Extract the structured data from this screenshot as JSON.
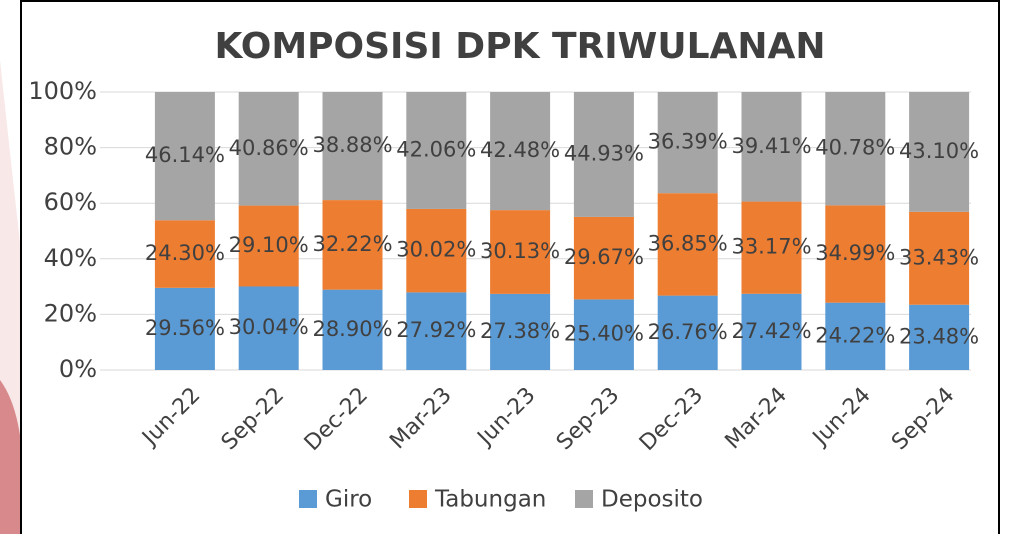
{
  "chart_data": {
    "type": "stacked_bar",
    "title": "KOMPOSISI DPK TRIWULANAN",
    "categories": [
      "Jun-22",
      "Sep-22",
      "Dec-22",
      "Mar-23",
      "Jun-23",
      "Sep-23",
      "Dec-23",
      "Mar-24",
      "Jun-24",
      "Sep-24"
    ],
    "series": [
      {
        "name": "Giro",
        "color": "#5b9bd5",
        "values": [
          29.56,
          30.04,
          28.9,
          27.92,
          27.38,
          25.4,
          26.76,
          27.42,
          24.22,
          23.48
        ],
        "value_labels": [
          "29.56%",
          "30.04%",
          "28.90%",
          "27.92%",
          "27.38%",
          "25.40%",
          "26.76%",
          "27.42%",
          "24.22%",
          "23.48%"
        ]
      },
      {
        "name": "Tabungan",
        "color": "#ed7d31",
        "values": [
          24.3,
          29.1,
          32.22,
          30.02,
          30.13,
          29.67,
          36.85,
          33.17,
          34.99,
          33.43
        ],
        "value_labels": [
          "24.30%",
          "29.10%",
          "32.22%",
          "30.02%",
          "30.13%",
          "29.67%",
          "36.85%",
          "33.17%",
          "34.99%",
          "33.43%"
        ]
      },
      {
        "name": "Deposito",
        "color": "#a5a5a5",
        "values": [
          46.14,
          40.86,
          38.88,
          42.06,
          42.48,
          44.93,
          36.39,
          39.41,
          40.78,
          43.1
        ],
        "value_labels": [
          "46.14%",
          "40.86%",
          "38.88%",
          "42.06%",
          "42.48%",
          "44.93%",
          "36.39%",
          "39.41%",
          "40.78%",
          "43.10%"
        ]
      }
    ],
    "ylim": [
      0,
      100
    ],
    "yticks": [
      {
        "value": 0,
        "label": "0%"
      },
      {
        "value": 20,
        "label": "20%"
      },
      {
        "value": 40,
        "label": "40%"
      },
      {
        "value": 60,
        "label": "60%"
      },
      {
        "value": 80,
        "label": "80%"
      },
      {
        "value": 100,
        "label": "100%"
      }
    ],
    "grid": true,
    "legend": "bottom"
  }
}
